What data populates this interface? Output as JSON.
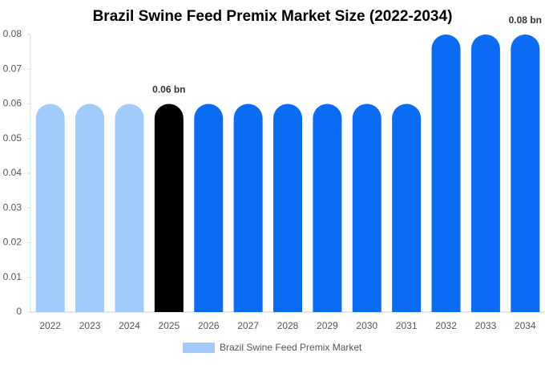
{
  "chart_data": {
    "type": "bar",
    "title": "Brazil Swine Feed Premix Market Size (2022-2034)",
    "categories": [
      "2022",
      "2023",
      "2024",
      "2025",
      "2026",
      "2027",
      "2028",
      "2029",
      "2030",
      "2031",
      "2032",
      "2033",
      "2034"
    ],
    "series": [
      {
        "name": "Brazil Swine Feed Premix Market",
        "color": "#a0cbfb",
        "values": [
          0.06,
          0.06,
          0.06,
          0.06,
          0.06,
          0.06,
          0.06,
          0.06,
          0.06,
          0.06,
          0.08,
          0.08,
          0.08
        ],
        "value_labels": [
          null,
          null,
          null,
          "0.06 bn",
          null,
          null,
          null,
          null,
          null,
          null,
          null,
          null,
          "0.08 bn"
        ],
        "colors": [
          "#a0cbfb",
          "#a0cbfb",
          "#a0cbfb",
          "#000000",
          "#0a6cf5",
          "#0a6cf5",
          "#0a6cf5",
          "#0a6cf5",
          "#0a6cf5",
          "#0a6cf5",
          "#0a6cf5",
          "#0a6cf5",
          "#0a6cf5"
        ]
      }
    ],
    "ylim": [
      0,
      0.08
    ],
    "yticks": [
      0,
      0.01,
      0.02,
      0.03,
      0.04,
      0.05,
      0.06,
      0.07,
      0.08
    ],
    "grid": false
  }
}
